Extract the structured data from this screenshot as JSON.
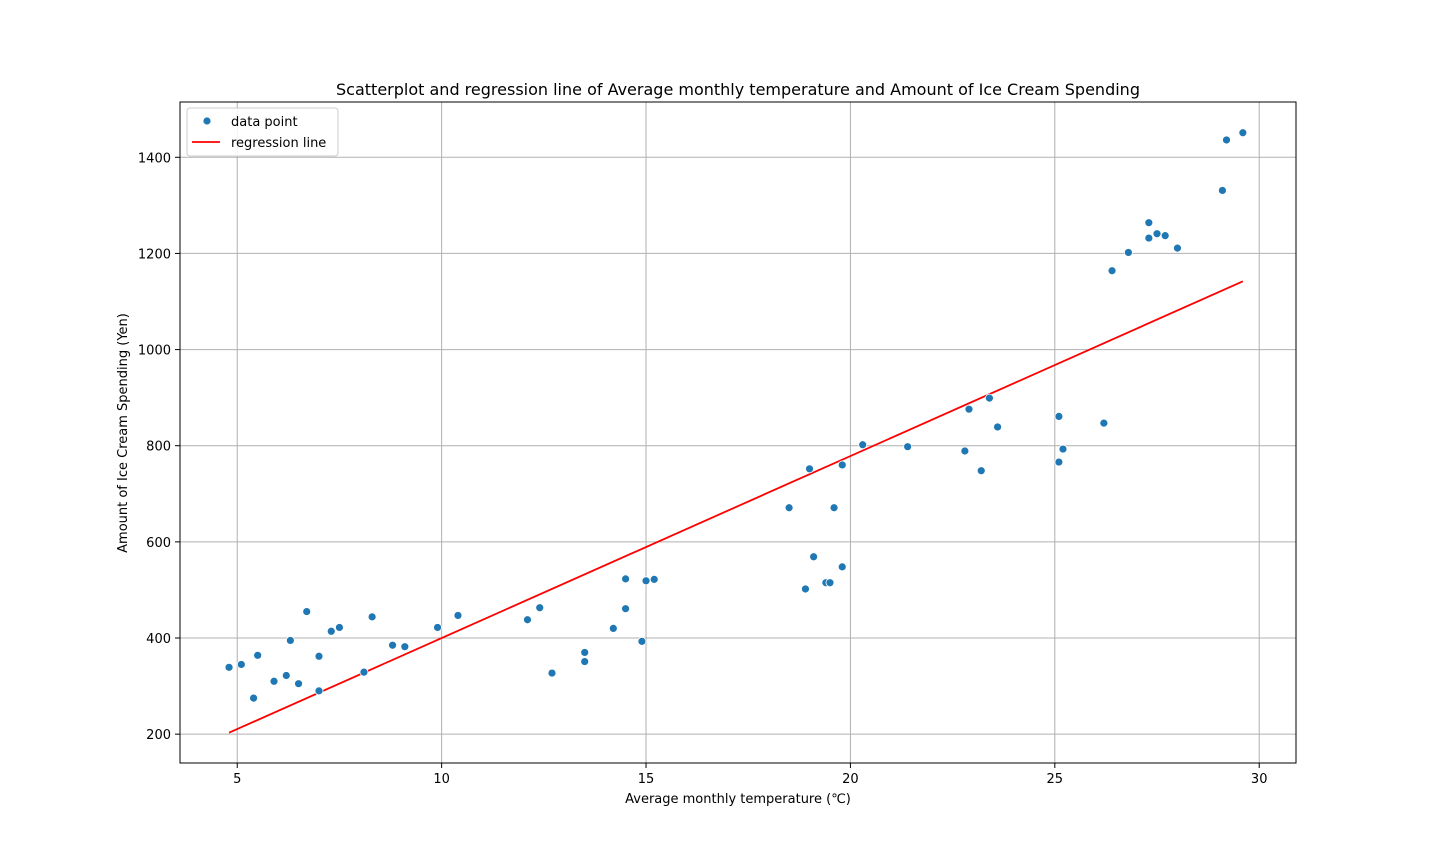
{
  "chart_data": {
    "type": "scatter",
    "title": "Scatterplot and regression line of Average monthly temperature and Amount of Ice Cream Spending",
    "xlabel": "Average monthly temperature (℃)",
    "ylabel": "Amount of Ice Cream Spending (Yen)",
    "xlim": [
      3.6,
      30.9
    ],
    "ylim": [
      140,
      1515
    ],
    "xticks": [
      5,
      10,
      15,
      20,
      25,
      30
    ],
    "yticks": [
      200,
      400,
      600,
      800,
      1000,
      1200,
      1400
    ],
    "grid": true,
    "legend_position": "top-left",
    "legend": {
      "scatter_label": "data point",
      "line_label": "regression line"
    },
    "colors": {
      "points": "#1f77b4",
      "regression": "#ff0000",
      "grid": "#b0b0b0"
    },
    "series": [
      {
        "name": "data point",
        "kind": "scatter",
        "points": [
          [
            4.8,
            339
          ],
          [
            5.1,
            345
          ],
          [
            5.4,
            275
          ],
          [
            5.5,
            364
          ],
          [
            5.9,
            310
          ],
          [
            6.2,
            322
          ],
          [
            6.3,
            395
          ],
          [
            6.5,
            305
          ],
          [
            6.7,
            455
          ],
          [
            7.0,
            362
          ],
          [
            7.0,
            290
          ],
          [
            7.3,
            414
          ],
          [
            7.5,
            422
          ],
          [
            8.1,
            329
          ],
          [
            8.3,
            444
          ],
          [
            8.8,
            385
          ],
          [
            9.1,
            382
          ],
          [
            9.9,
            422
          ],
          [
            10.4,
            447
          ],
          [
            12.1,
            438
          ],
          [
            12.4,
            463
          ],
          [
            12.7,
            327
          ],
          [
            13.5,
            370
          ],
          [
            13.5,
            351
          ],
          [
            14.2,
            420
          ],
          [
            14.5,
            523
          ],
          [
            14.5,
            461
          ],
          [
            14.9,
            393
          ],
          [
            15.0,
            519
          ],
          [
            15.2,
            522
          ],
          [
            18.5,
            671
          ],
          [
            18.9,
            502
          ],
          [
            19.0,
            752
          ],
          [
            19.1,
            569
          ],
          [
            19.4,
            515
          ],
          [
            19.5,
            515
          ],
          [
            19.6,
            671
          ],
          [
            19.8,
            760
          ],
          [
            19.8,
            548
          ],
          [
            20.3,
            802
          ],
          [
            21.4,
            798
          ],
          [
            22.8,
            789
          ],
          [
            22.9,
            876
          ],
          [
            23.2,
            748
          ],
          [
            23.4,
            899
          ],
          [
            23.6,
            839
          ],
          [
            25.1,
            861
          ],
          [
            25.1,
            766
          ],
          [
            25.2,
            793
          ],
          [
            26.2,
            847
          ],
          [
            26.4,
            1164
          ],
          [
            26.8,
            1202
          ],
          [
            27.3,
            1264
          ],
          [
            27.3,
            1232
          ],
          [
            27.5,
            1241
          ],
          [
            27.7,
            1237
          ],
          [
            28.0,
            1211
          ],
          [
            29.1,
            1331
          ],
          [
            29.2,
            1436
          ],
          [
            29.6,
            1451
          ]
        ]
      },
      {
        "name": "regression line",
        "kind": "line",
        "points": [
          [
            4.8,
            203
          ],
          [
            29.6,
            1142
          ]
        ]
      }
    ]
  }
}
